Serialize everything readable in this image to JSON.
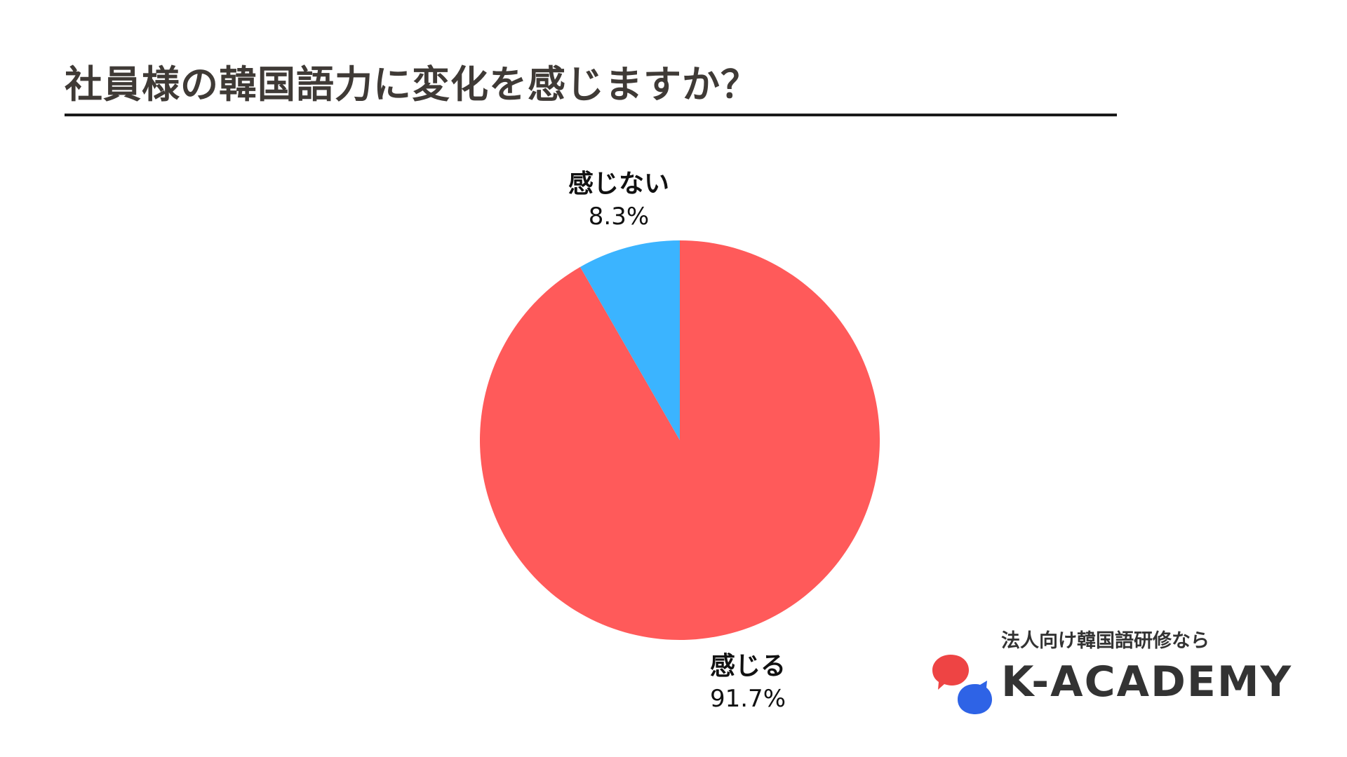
{
  "title": "社員様の韓国語力に変化を感じますか？",
  "chart_data": {
    "type": "pie",
    "categories": [
      "感じる",
      "感じない"
    ],
    "values": [
      91.7,
      8.3
    ],
    "value_labels": [
      "91.7%",
      "8.3%"
    ],
    "colors": [
      "#FF5A5A",
      "#3BB4FF"
    ],
    "start_angle": "12 o'clock",
    "direction": "clockwise",
    "legend": "none"
  },
  "brand": {
    "tagline": "法人向け韓国語研修なら",
    "name": "K-ACADEMY",
    "logo_colors": [
      "#EE4444",
      "#2E63E6"
    ]
  }
}
